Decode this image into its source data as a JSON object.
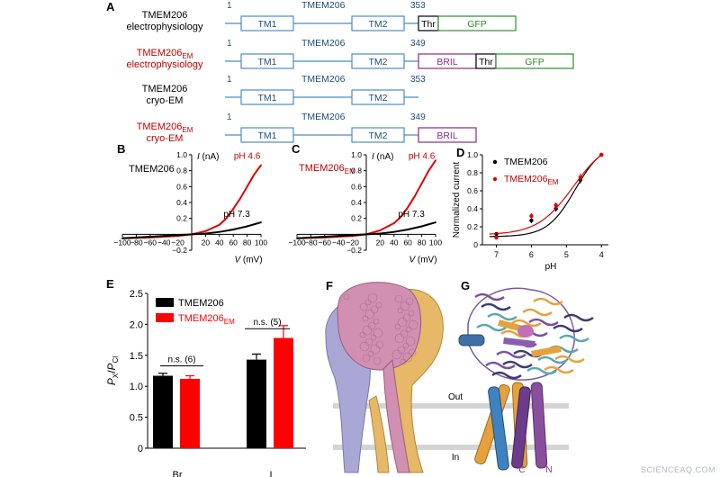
{
  "panelA": {
    "letter": "A",
    "rows": [
      {
        "name": "TMEM206",
        "sub": "",
        "name_suffix": "",
        "desc": "electrophysiology",
        "color": "#000000",
        "start": "1",
        "title": "TMEM206",
        "end": "353",
        "tags": [
          {
            "label": "Thr",
            "color": "#000000"
          },
          {
            "label": "GFP",
            "color": "#2e8b2e"
          }
        ]
      },
      {
        "name": "TMEM206",
        "sub": "EM",
        "name_suffix": "",
        "desc": "electrophysiology",
        "color": "#c00000",
        "start": "1",
        "title": "TMEM206",
        "end": "349",
        "tags": [
          {
            "label": "BRIL",
            "color": "#8b2a8b"
          },
          {
            "label": "Thr",
            "color": "#000000"
          },
          {
            "label": "GFP",
            "color": "#2e8b2e"
          }
        ]
      },
      {
        "name": "TMEM206",
        "sub": "",
        "name_suffix": "",
        "desc": "cryo-EM",
        "color": "#000000",
        "start": "1",
        "title": "TMEM206",
        "end": "353",
        "tags": []
      },
      {
        "name": "TMEM206",
        "sub": "EM",
        "name_suffix": "",
        "desc": "cryo-EM",
        "color": "#c00000",
        "start": "1",
        "title": "TMEM206",
        "end": "349",
        "tags": [
          {
            "label": "BRIL",
            "color": "#8b2a8b"
          }
        ]
      }
    ],
    "tm1": "TM1",
    "tm2": "TM2",
    "line_color": "#4a8cc7"
  },
  "chart_data": [
    {
      "panel": "B",
      "type": "line",
      "title": "TMEM206",
      "xlabel": "V (mV)",
      "ylabel": "I (nA)",
      "xlim": [
        -100,
        100
      ],
      "ylim": [
        -0.2,
        1.0
      ],
      "x_ticks": [
        -100,
        -80,
        -60,
        -40,
        -20,
        20,
        40,
        60,
        80,
        100
      ],
      "y_ticks": [
        -0.2,
        0.2,
        0.4,
        0.6,
        0.8,
        1.0
      ],
      "series": [
        {
          "name": "pH 4.6",
          "color": "#e00000",
          "x": [
            -100,
            -60,
            -20,
            0,
            20,
            40,
            50,
            60,
            70,
            80,
            90,
            100
          ],
          "y": [
            -0.05,
            -0.04,
            -0.02,
            0.0,
            0.04,
            0.12,
            0.2,
            0.32,
            0.45,
            0.6,
            0.75,
            0.87
          ]
        },
        {
          "name": "pH 7.3",
          "color": "#000000",
          "x": [
            -100,
            -60,
            -20,
            0,
            20,
            40,
            60,
            80,
            100
          ],
          "y": [
            -0.05,
            -0.03,
            -0.01,
            0.0,
            0.01,
            0.03,
            0.06,
            0.1,
            0.15
          ]
        }
      ]
    },
    {
      "panel": "C",
      "type": "line",
      "title": "TMEM206EM",
      "xlabel": "V (mV)",
      "ylabel": "I (nA)",
      "xlim": [
        -100,
        100
      ],
      "ylim": [
        -0.2,
        1.0
      ],
      "x_ticks": [
        -100,
        -80,
        -60,
        -40,
        -20,
        20,
        40,
        60,
        80,
        100
      ],
      "y_ticks": [
        -0.2,
        0.2,
        0.4,
        0.6,
        0.8,
        1.0
      ],
      "series": [
        {
          "name": "pH 4.6",
          "color": "#e00000",
          "x": [
            -100,
            -60,
            -20,
            0,
            20,
            40,
            50,
            60,
            70,
            80,
            90,
            100
          ],
          "y": [
            -0.05,
            -0.04,
            -0.02,
            0.0,
            0.05,
            0.14,
            0.22,
            0.34,
            0.48,
            0.64,
            0.8,
            0.93
          ]
        },
        {
          "name": "pH 7.3",
          "color": "#000000",
          "x": [
            -100,
            -60,
            -20,
            0,
            20,
            40,
            60,
            80,
            100
          ],
          "y": [
            -0.05,
            -0.03,
            -0.01,
            0.0,
            0.01,
            0.03,
            0.06,
            0.1,
            0.15
          ]
        }
      ]
    },
    {
      "panel": "D",
      "type": "line",
      "xlabel": "pH",
      "ylabel": "Normalized current",
      "xlim": [
        7.4,
        3.8
      ],
      "ylim": [
        0,
        1.0
      ],
      "x_ticks": [
        7,
        6,
        5,
        4
      ],
      "y_ticks": [
        0,
        0.2,
        0.4,
        0.6,
        0.8,
        1.0
      ],
      "legend": "top-left",
      "series": [
        {
          "name": "TMEM206",
          "color": "#000000",
          "x": [
            7.0,
            6.0,
            5.3,
            4.6,
            4.0
          ],
          "y": [
            0.12,
            0.27,
            0.4,
            0.72,
            1.0
          ],
          "err": [
            0.02,
            0.03,
            0.03,
            0.04,
            0.0
          ]
        },
        {
          "name": "TMEM206EM",
          "color": "#e00000",
          "x": [
            7.0,
            6.0,
            5.3,
            4.6,
            4.0
          ],
          "y": [
            0.08,
            0.32,
            0.44,
            0.75,
            1.0
          ],
          "err": [
            0.02,
            0.03,
            0.03,
            0.04,
            0.0
          ]
        }
      ]
    },
    {
      "panel": "E",
      "type": "bar",
      "categories": [
        "Br",
        "I"
      ],
      "ylabel": "PX/PCl",
      "ylim": [
        0,
        2.5
      ],
      "y_ticks": [
        0,
        0.5,
        1.0,
        1.5,
        2.0,
        2.5
      ],
      "legend": "top-left",
      "series": [
        {
          "name": "TMEM206",
          "color": "#000000",
          "values": [
            1.17,
            1.43
          ],
          "err": [
            0.04,
            0.09
          ]
        },
        {
          "name": "TMEM206EM",
          "color": "#ff0000",
          "values": [
            1.12,
            1.78
          ],
          "err": [
            0.05,
            0.2
          ]
        }
      ],
      "annotations": [
        "n.s. (6)",
        "n.s. (5)"
      ]
    }
  ],
  "panelF": {
    "letter": "F",
    "out": "Out",
    "in": "In"
  },
  "panelG": {
    "letter": "G",
    "c_label": "C",
    "n_label": "N"
  },
  "watermark": "SCIENCEAQ.COM"
}
